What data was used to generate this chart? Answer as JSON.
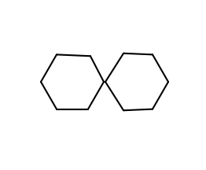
{
  "bg": "#ffffff",
  "lw": 1.5,
  "font_size": 9,
  "figsize": [
    2.62,
    2.16
  ],
  "dpi": 100
}
